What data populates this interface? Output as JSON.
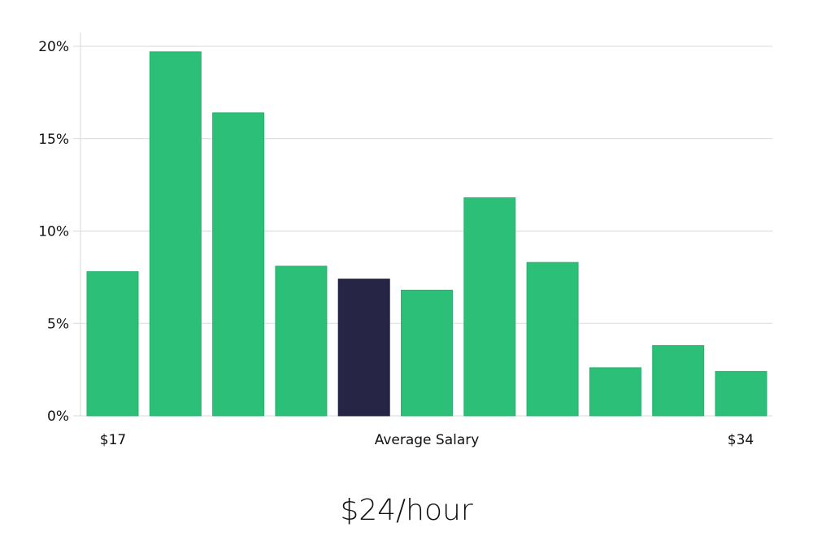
{
  "chart_data": {
    "type": "bar",
    "categories": [
      "$17",
      "",
      "",
      "",
      "",
      "Average Salary",
      "",
      "",
      "",
      "",
      "$34"
    ],
    "values": [
      7.8,
      19.7,
      16.4,
      8.1,
      7.4,
      6.8,
      11.8,
      8.3,
      2.6,
      3.8,
      2.4
    ],
    "highlight_index": 4,
    "ylim": [
      0,
      20
    ],
    "yticks": [
      "0%",
      "5%",
      "10%",
      "15%",
      "20%"
    ],
    "ytick_values": [
      0,
      5,
      10,
      15,
      20
    ],
    "x_labels": {
      "left": "$17",
      "center": "Average Salary",
      "right": "$34"
    },
    "grid": true,
    "colors": {
      "bar": "#2bbf78",
      "highlight": "#272545",
      "grid": "#d9d9d9"
    }
  },
  "headline": "$24/hour"
}
